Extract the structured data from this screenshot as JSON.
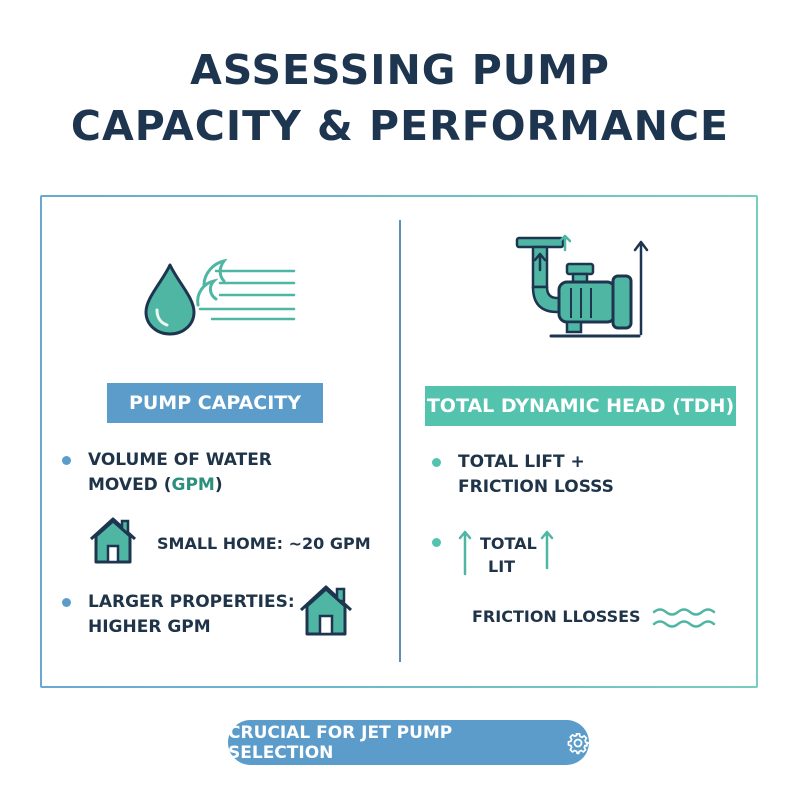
{
  "title": {
    "line1": "ASSESSING PUMP",
    "line2": "CAPACITY & PERFORMANCE"
  },
  "left_panel": {
    "heading": "PUMP CAPACITY",
    "bullet1_line1": "VOLUME OF WATER",
    "bullet1_line2_prefix": "MOVED (",
    "bullet1_line2_unit": "GPM",
    "bullet1_line2_suffix": ")",
    "small_home": "SMALL HOME: ~20 GPM",
    "bullet2_line1": "LARGER PROPERTIES:",
    "bullet2_line2": "HIGHER GPM",
    "icons": [
      "water-drop-icon",
      "flow-lines-icon",
      "house-icon"
    ]
  },
  "right_panel": {
    "heading": "TOTAL DYNAMIC HEAD (TDH)",
    "bullet1_line1": "TOTAL LIFT +",
    "bullet1_line2": "FRICTION LOSSS",
    "bullet2_line1": "TOTAL",
    "bullet2_line2": "LIT",
    "friction": "FRICTION LLOSSES",
    "icons": [
      "pump-icon",
      "up-arrow-icon",
      "wave-icon"
    ]
  },
  "footer": {
    "label": "CRUCIAL FOR JET PUMP SELECTION",
    "icon": "gear-icon"
  },
  "colors": {
    "navy": "#1e3550",
    "blue": "#5b9ccb",
    "teal": "#53c3ae",
    "icon_fill": "#4fb6a4"
  }
}
